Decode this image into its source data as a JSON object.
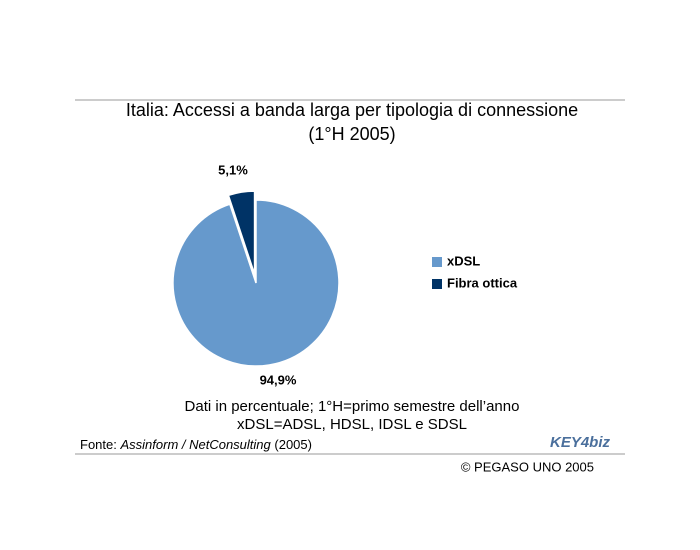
{
  "chart_data": {
    "type": "pie",
    "title": "Italia: Accessi a banda larga per tipologia di connessione",
    "subtitle": "(1°H 2005)",
    "categories": [
      "xDSL",
      "Fibra ottica"
    ],
    "values": [
      94.9,
      5.1
    ],
    "value_labels": [
      "94,9%",
      "5,1%"
    ],
    "colors": [
      "#6699cc",
      "#003366"
    ],
    "notes": [
      "Dati in percentuale; 1°H=primo semestre dell’anno",
      "xDSL=ADSL, HDSL, IDSL e SDSL"
    ],
    "source": {
      "prefix": "Fonte:",
      "name": "Assinform / NetConsulting",
      "year": "(2005)"
    },
    "logo": "KEY4biz",
    "copyright": "© PEGASO UNO 2005"
  }
}
